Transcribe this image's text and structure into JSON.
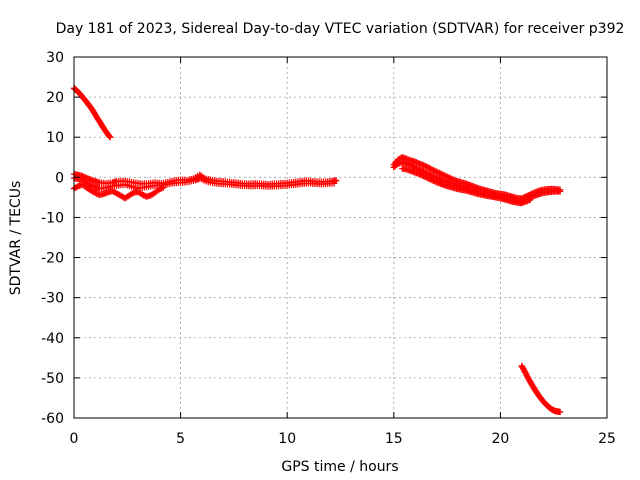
{
  "chart_data": {
    "type": "scatter",
    "title": "Day 181 of 2023, Sidereal Day-to-day VTEC variation (SDTVAR) for receiver p392",
    "xlabel": "GPS time / hours",
    "ylabel": "SDTVAR / TECUs",
    "xlim": [
      0,
      25
    ],
    "ylim": [
      -60,
      30
    ],
    "xticks": [
      0,
      5,
      10,
      15,
      20,
      25
    ],
    "yticks": [
      -60,
      -50,
      -40,
      -30,
      -20,
      -10,
      0,
      10,
      20,
      30
    ],
    "grid": true,
    "marker": "plus",
    "color": "#ff0000",
    "series": [
      {
        "name": "arc-1",
        "points": [
          [
            0.0,
            22.2
          ],
          [
            0.1,
            21.8
          ],
          [
            0.2,
            21.2
          ],
          [
            0.3,
            20.7
          ],
          [
            0.4,
            20.0
          ],
          [
            0.5,
            19.4
          ],
          [
            0.6,
            18.7
          ],
          [
            0.7,
            18.0
          ],
          [
            0.8,
            17.3
          ],
          [
            0.9,
            16.5
          ],
          [
            1.0,
            15.6
          ],
          [
            1.1,
            14.7
          ],
          [
            1.2,
            13.9
          ],
          [
            1.3,
            13.0
          ],
          [
            1.4,
            12.2
          ],
          [
            1.5,
            11.4
          ],
          [
            1.6,
            10.6
          ],
          [
            1.7,
            10.0
          ]
        ]
      },
      {
        "name": "arc-2-upper",
        "points": [
          [
            0.0,
            0.8
          ],
          [
            0.2,
            0.6
          ],
          [
            0.4,
            0.3
          ],
          [
            0.6,
            -0.2
          ],
          [
            0.8,
            -0.6
          ],
          [
            1.0,
            -1.0
          ],
          [
            1.2,
            -1.3
          ],
          [
            1.5,
            -1.5
          ],
          [
            1.8,
            -1.3
          ],
          [
            2.0,
            -1.0
          ],
          [
            2.3,
            -0.9
          ],
          [
            2.6,
            -1.1
          ],
          [
            2.9,
            -1.4
          ],
          [
            3.2,
            -1.6
          ],
          [
            3.5,
            -1.5
          ],
          [
            3.8,
            -1.3
          ],
          [
            4.1,
            -1.5
          ],
          [
            4.4,
            -1.2
          ],
          [
            4.7,
            -0.8
          ],
          [
            5.0,
            -0.6
          ],
          [
            5.3,
            -0.7
          ],
          [
            5.6,
            -0.3
          ],
          [
            5.9,
            0.6
          ],
          [
            6.1,
            -0.2
          ],
          [
            6.4,
            -0.6
          ],
          [
            6.7,
            -0.9
          ],
          [
            7.0,
            -1.0
          ],
          [
            7.3,
            -1.2
          ],
          [
            7.6,
            -1.3
          ],
          [
            7.9,
            -1.5
          ],
          [
            8.2,
            -1.6
          ],
          [
            8.5,
            -1.5
          ],
          [
            8.8,
            -1.6
          ],
          [
            9.1,
            -1.7
          ],
          [
            9.4,
            -1.6
          ],
          [
            9.7,
            -1.5
          ],
          [
            10.0,
            -1.4
          ],
          [
            10.3,
            -1.2
          ],
          [
            10.6,
            -1.0
          ],
          [
            10.9,
            -0.8
          ],
          [
            11.2,
            -1.0
          ],
          [
            11.5,
            -1.1
          ],
          [
            11.8,
            -1.1
          ],
          [
            12.1,
            -0.9
          ],
          [
            12.3,
            -0.8
          ]
        ]
      },
      {
        "name": "arc-2-middle",
        "points": [
          [
            0.0,
            -0.2
          ],
          [
            0.2,
            -0.4
          ],
          [
            0.4,
            -0.8
          ],
          [
            0.6,
            -1.4
          ],
          [
            0.8,
            -2.0
          ],
          [
            1.0,
            -2.5
          ],
          [
            1.2,
            -2.8
          ],
          [
            1.5,
            -2.6
          ],
          [
            1.8,
            -2.2
          ],
          [
            2.1,
            -2.0
          ],
          [
            2.4,
            -1.8
          ],
          [
            2.7,
            -2.3
          ],
          [
            3.0,
            -2.7
          ],
          [
            3.3,
            -2.5
          ],
          [
            3.6,
            -2.2
          ],
          [
            3.9,
            -2.0
          ],
          [
            4.2,
            -1.9
          ],
          [
            4.5,
            -1.6
          ],
          [
            4.8,
            -1.4
          ],
          [
            5.1,
            -1.3
          ],
          [
            5.4,
            -1.1
          ],
          [
            5.7,
            -0.7
          ],
          [
            5.9,
            -0.3
          ],
          [
            6.2,
            -1.0
          ],
          [
            6.5,
            -1.4
          ],
          [
            6.8,
            -1.6
          ],
          [
            7.1,
            -1.7
          ],
          [
            7.4,
            -1.8
          ],
          [
            7.7,
            -2.0
          ],
          [
            8.0,
            -2.1
          ],
          [
            8.3,
            -2.2
          ],
          [
            8.6,
            -2.1
          ],
          [
            8.9,
            -2.2
          ],
          [
            9.2,
            -2.3
          ],
          [
            9.5,
            -2.2
          ],
          [
            9.8,
            -2.1
          ],
          [
            10.1,
            -2.0
          ],
          [
            10.4,
            -1.8
          ],
          [
            10.7,
            -1.6
          ],
          [
            11.0,
            -1.5
          ],
          [
            11.3,
            -1.6
          ],
          [
            11.6,
            -1.7
          ],
          [
            11.9,
            -1.6
          ],
          [
            12.2,
            -1.5
          ]
        ]
      },
      {
        "name": "arc-2-lower",
        "points": [
          [
            0.0,
            -2.8
          ],
          [
            0.2,
            -2.2
          ],
          [
            0.4,
            -1.8
          ],
          [
            0.6,
            -2.6
          ],
          [
            0.8,
            -3.3
          ],
          [
            1.0,
            -3.9
          ],
          [
            1.2,
            -4.4
          ],
          [
            1.4,
            -4.1
          ],
          [
            1.6,
            -3.7
          ],
          [
            1.8,
            -3.4
          ],
          [
            2.0,
            -4.0
          ],
          [
            2.2,
            -4.6
          ],
          [
            2.4,
            -5.2
          ],
          [
            2.6,
            -4.5
          ],
          [
            2.8,
            -3.8
          ],
          [
            3.0,
            -3.6
          ],
          [
            3.2,
            -4.3
          ],
          [
            3.4,
            -4.8
          ],
          [
            3.6,
            -4.5
          ],
          [
            3.8,
            -3.8
          ],
          [
            4.0,
            -3.0
          ],
          [
            4.2,
            -2.5
          ]
        ]
      },
      {
        "name": "arc-3-upper",
        "points": [
          [
            15.0,
            3.2
          ],
          [
            15.2,
            4.4
          ],
          [
            15.4,
            5.0
          ],
          [
            15.6,
            4.6
          ],
          [
            15.8,
            4.2
          ],
          [
            16.0,
            3.9
          ],
          [
            16.2,
            3.4
          ],
          [
            16.4,
            3.0
          ],
          [
            16.6,
            2.5
          ],
          [
            16.8,
            1.9
          ],
          [
            17.0,
            1.4
          ],
          [
            17.2,
            0.9
          ],
          [
            17.4,
            0.4
          ],
          [
            17.6,
            -0.1
          ],
          [
            17.8,
            -0.6
          ],
          [
            18.0,
            -1.0
          ],
          [
            18.2,
            -1.3
          ],
          [
            18.4,
            -1.6
          ],
          [
            18.6,
            -2.0
          ],
          [
            18.8,
            -2.4
          ],
          [
            19.0,
            -2.8
          ],
          [
            19.2,
            -3.1
          ],
          [
            19.4,
            -3.4
          ],
          [
            19.6,
            -3.7
          ],
          [
            19.8,
            -4.0
          ],
          [
            20.0,
            -4.1
          ],
          [
            20.2,
            -4.3
          ],
          [
            20.4,
            -4.6
          ],
          [
            20.6,
            -4.9
          ],
          [
            20.8,
            -5.2
          ],
          [
            21.0,
            -5.3
          ],
          [
            21.2,
            -4.8
          ],
          [
            21.4,
            -4.3
          ],
          [
            21.6,
            -3.8
          ],
          [
            21.8,
            -3.4
          ],
          [
            22.0,
            -3.1
          ],
          [
            22.2,
            -3.0
          ],
          [
            22.4,
            -2.9
          ],
          [
            22.6,
            -3.0
          ],
          [
            22.8,
            -3.1
          ]
        ]
      },
      {
        "name": "arc-3-middle",
        "points": [
          [
            15.0,
            2.5
          ],
          [
            15.2,
            3.4
          ],
          [
            15.4,
            3.8
          ],
          [
            15.6,
            3.5
          ],
          [
            15.8,
            3.0
          ],
          [
            16.0,
            2.4
          ],
          [
            16.2,
            1.9
          ],
          [
            16.4,
            1.4
          ],
          [
            16.6,
            0.9
          ],
          [
            16.8,
            0.4
          ],
          [
            17.0,
            -0.1
          ],
          [
            17.2,
            -0.5
          ],
          [
            17.4,
            -0.9
          ],
          [
            17.6,
            -1.3
          ],
          [
            17.8,
            -1.7
          ],
          [
            18.0,
            -2.1
          ],
          [
            18.2,
            -2.4
          ],
          [
            18.4,
            -2.7
          ],
          [
            18.6,
            -3.0
          ],
          [
            18.8,
            -3.3
          ],
          [
            19.0,
            -3.6
          ],
          [
            19.2,
            -3.9
          ],
          [
            19.4,
            -4.2
          ],
          [
            19.6,
            -4.5
          ],
          [
            19.8,
            -4.7
          ],
          [
            20.0,
            -4.9
          ],
          [
            20.2,
            -5.1
          ],
          [
            20.4,
            -5.4
          ],
          [
            20.6,
            -5.7
          ],
          [
            20.8,
            -5.9
          ],
          [
            21.0,
            -6.0
          ],
          [
            21.2,
            -5.5
          ],
          [
            21.4,
            -5.0
          ],
          [
            21.6,
            -4.6
          ],
          [
            21.8,
            -4.2
          ],
          [
            22.0,
            -3.9
          ],
          [
            22.2,
            -3.7
          ],
          [
            22.4,
            -3.6
          ],
          [
            22.6,
            -3.5
          ],
          [
            22.8,
            -3.5
          ]
        ]
      },
      {
        "name": "arc-3-lower",
        "points": [
          [
            15.4,
            2.2
          ],
          [
            15.6,
            2.0
          ],
          [
            15.8,
            1.6
          ],
          [
            16.0,
            1.2
          ],
          [
            16.2,
            0.8
          ],
          [
            16.4,
            0.3
          ],
          [
            16.6,
            -0.2
          ],
          [
            16.8,
            -0.7
          ],
          [
            17.0,
            -1.2
          ],
          [
            17.2,
            -1.6
          ],
          [
            17.4,
            -2.0
          ],
          [
            17.6,
            -2.3
          ],
          [
            17.8,
            -2.6
          ],
          [
            18.0,
            -2.9
          ],
          [
            18.2,
            -3.1
          ],
          [
            18.4,
            -3.3
          ],
          [
            18.6,
            -3.6
          ],
          [
            18.8,
            -3.9
          ],
          [
            19.0,
            -4.2
          ],
          [
            19.2,
            -4.4
          ],
          [
            19.4,
            -4.6
          ],
          [
            19.6,
            -4.8
          ],
          [
            19.8,
            -5.0
          ],
          [
            20.0,
            -5.2
          ],
          [
            20.2,
            -5.5
          ],
          [
            20.4,
            -5.8
          ],
          [
            20.6,
            -6.1
          ],
          [
            20.8,
            -6.3
          ],
          [
            21.0,
            -6.4
          ],
          [
            21.2,
            -6.0
          ],
          [
            21.4,
            -5.6
          ]
        ]
      },
      {
        "name": "arc-4",
        "points": [
          [
            21.0,
            -47.0
          ],
          [
            21.1,
            -48.0
          ],
          [
            21.2,
            -49.0
          ],
          [
            21.3,
            -50.0
          ],
          [
            21.4,
            -51.0
          ],
          [
            21.5,
            -51.9
          ],
          [
            21.6,
            -52.8
          ],
          [
            21.7,
            -53.6
          ],
          [
            21.8,
            -54.4
          ],
          [
            21.9,
            -55.1
          ],
          [
            22.0,
            -55.8
          ],
          [
            22.1,
            -56.4
          ],
          [
            22.2,
            -56.9
          ],
          [
            22.3,
            -57.4
          ],
          [
            22.4,
            -57.8
          ],
          [
            22.5,
            -58.1
          ],
          [
            22.6,
            -58.3
          ],
          [
            22.7,
            -58.4
          ],
          [
            22.8,
            -58.5
          ]
        ]
      }
    ]
  }
}
